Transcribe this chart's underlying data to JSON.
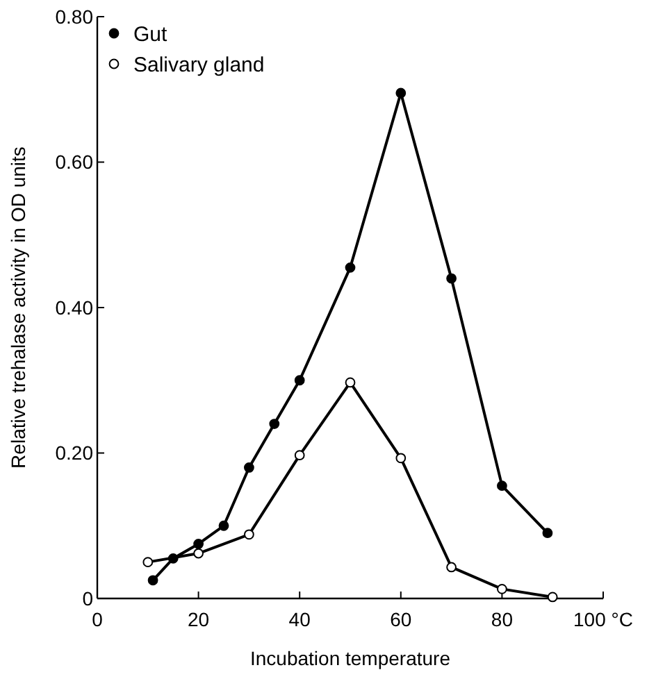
{
  "chart_data": {
    "type": "line",
    "xlabel": "Incubation temperature",
    "ylabel": "Relative trehalase activity in OD units",
    "xlim": [
      0,
      100
    ],
    "xticks": [
      0,
      20,
      40,
      60,
      80,
      {
        "value": 100,
        "label": "100 °C"
      }
    ],
    "ylim": [
      0,
      0.8
    ],
    "yticks": [
      0,
      {
        "value": 0.2,
        "label": "0.20"
      },
      {
        "value": 0.4,
        "label": "0.40"
      },
      {
        "value": 0.6,
        "label": "0.60"
      },
      {
        "value": 0.8,
        "label": "0.80"
      }
    ],
    "marker": "circle",
    "legend": "top left",
    "grid": false,
    "series": [
      {
        "name": "Gut",
        "color": "#000000",
        "x": [
          11,
          15,
          20,
          25,
          30,
          35,
          40,
          50,
          60,
          70,
          80,
          89
        ],
        "values": [
          0.025,
          0.055,
          0.075,
          0.1,
          0.18,
          0.24,
          0.3,
          0.455,
          0.695,
          0.44,
          0.155,
          0.09
        ]
      },
      {
        "name": "Salivary gland",
        "color": "#000000",
        "x": [
          10,
          20,
          30,
          40,
          50,
          60,
          70,
          80,
          90
        ],
        "values": [
          0.05,
          0.062,
          0.088,
          0.197,
          0.297,
          0.193,
          0.043,
          0.013,
          0.002
        ]
      }
    ]
  }
}
